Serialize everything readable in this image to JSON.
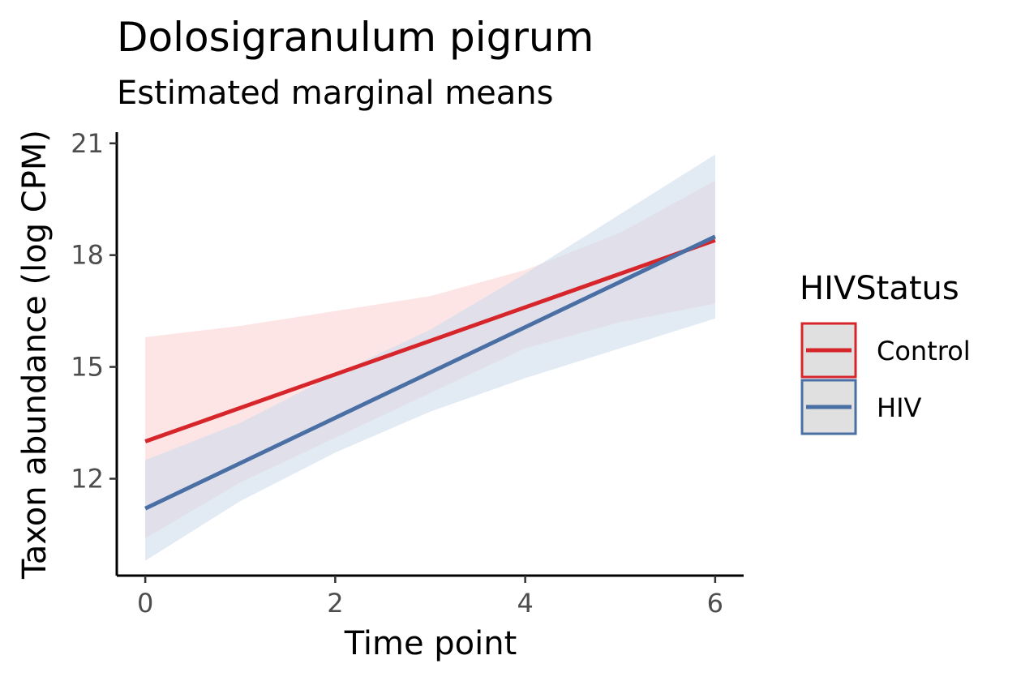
{
  "chart_data": {
    "type": "line",
    "title": "Dolosigranulum pigrum",
    "subtitle": "Estimated marginal means",
    "xlabel": "Time point",
    "ylabel": "Taxon abundance (log CPM)",
    "xlim": [
      -0.3,
      6.3
    ],
    "ylim": [
      9.4,
      21.3
    ],
    "x_ticks": [
      0,
      2,
      4,
      6
    ],
    "y_ticks": [
      12,
      15,
      18,
      21
    ],
    "grid": false,
    "legend": {
      "title": "HIVStatus",
      "position": "right"
    },
    "series": [
      {
        "name": "Control",
        "color": "#d7262b",
        "fill": "#fbd4d4",
        "x": [
          0,
          6
        ],
        "y": [
          13.0,
          18.4
        ],
        "ci_x": [
          0,
          1,
          2,
          3,
          4,
          5,
          6
        ],
        "ci_lower": [
          10.4,
          11.9,
          13.1,
          14.3,
          15.5,
          16.2,
          16.7
        ],
        "ci_upper": [
          15.8,
          16.1,
          16.5,
          16.9,
          17.6,
          18.6,
          20.0
        ]
      },
      {
        "name": "HIV",
        "color": "#4a6fa5",
        "fill": "#cfdced",
        "x": [
          0,
          6
        ],
        "y": [
          11.2,
          18.5
        ],
        "ci_x": [
          0,
          1,
          2,
          3,
          4,
          5,
          6
        ],
        "ci_lower": [
          9.8,
          11.4,
          12.7,
          13.8,
          14.7,
          15.5,
          16.3
        ],
        "ci_upper": [
          12.5,
          13.5,
          14.8,
          16.0,
          17.5,
          19.1,
          20.7
        ]
      }
    ]
  }
}
